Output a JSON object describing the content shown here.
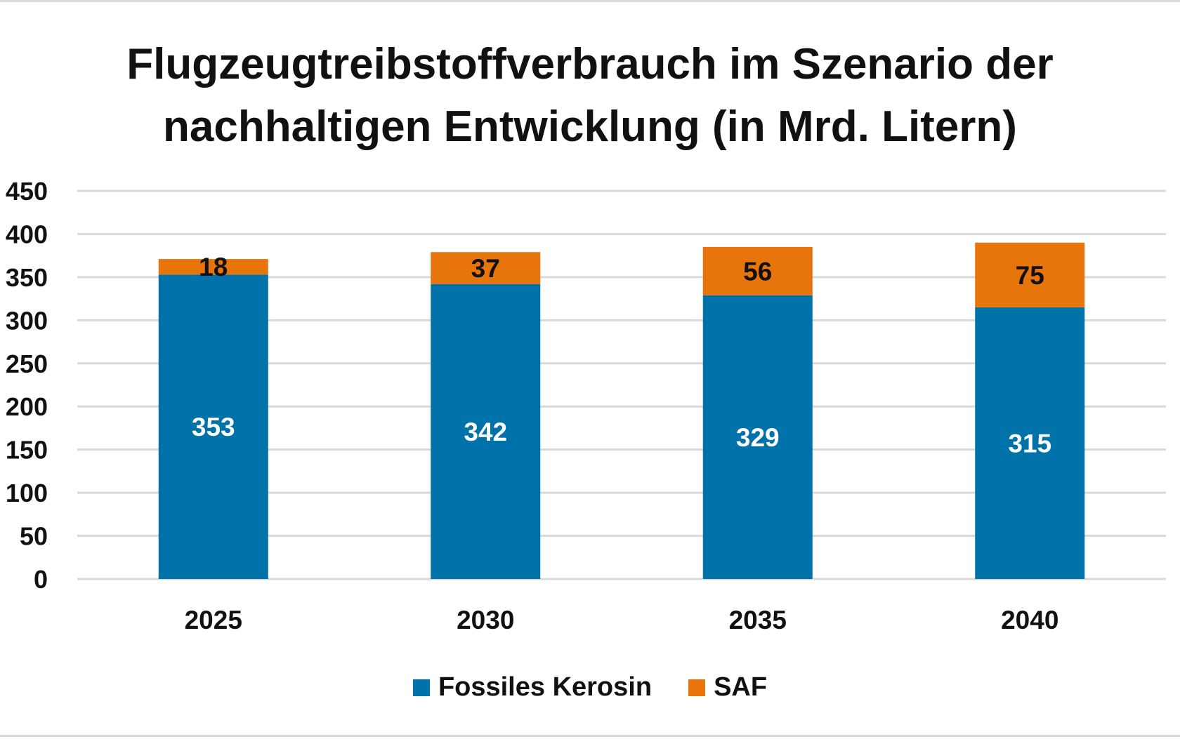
{
  "chart_data": {
    "type": "bar",
    "stacked": true,
    "title_lines": [
      "Flugzeugtreibstoffverbrauch im Szenario der",
      "nachhaltigen Entwicklung (in Mrd. Litern)"
    ],
    "categories": [
      "2025",
      "2030",
      "2035",
      "2040"
    ],
    "series": [
      {
        "name": "Fossiles Kerosin",
        "color": "#0072aa",
        "label_color": "#ffffff",
        "values": [
          353,
          342,
          329,
          315
        ]
      },
      {
        "name": "SAF",
        "color": "#e8740c",
        "label_color": "#111111",
        "values": [
          18,
          37,
          56,
          75
        ]
      }
    ],
    "ylim": [
      0,
      450
    ],
    "yticks": [
      0,
      50,
      100,
      150,
      200,
      250,
      300,
      350,
      400,
      450
    ],
    "grid": true,
    "legend_position": "bottom",
    "xlabel": "",
    "ylabel": ""
  }
}
